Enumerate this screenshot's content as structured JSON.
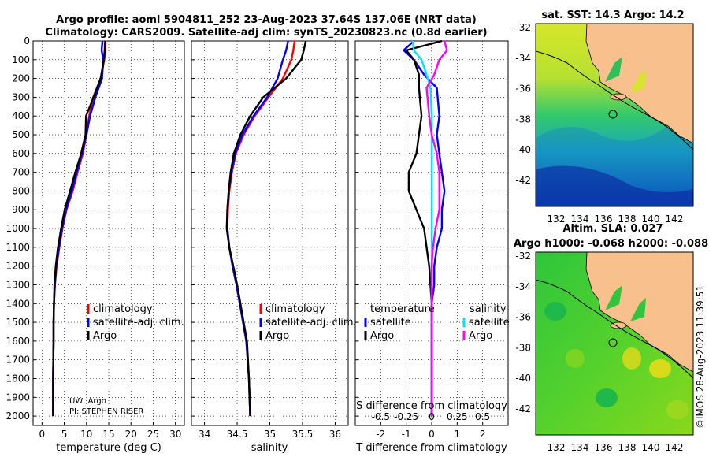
{
  "header": {
    "title1": "Argo profile: aoml 5904811_252 23-Aug-2023 37.64S 137.06E (NRT data)",
    "title2": "Climatology: CARS2009. Satellite-adj clim: synTS_20230823.nc (0.8d earlier)"
  },
  "colors": {
    "climatology": "#ff0000",
    "satellite": "#0000ff",
    "argo": "#000000",
    "satellite_salinity": "#00e5ff",
    "argo_salinity": "#ff00ff",
    "land": "#f8c08c"
  },
  "chart_data": [
    {
      "type": "line",
      "xlabel": "temperature (deg C)",
      "xlim": [
        -2,
        32
      ],
      "xticks": [
        "0",
        "5",
        "10",
        "15",
        "20",
        "25",
        "30"
      ],
      "ylim": [
        2050,
        0
      ],
      "yticks": [
        "0",
        "100",
        "200",
        "300",
        "400",
        "500",
        "600",
        "700",
        "800",
        "900",
        "1000",
        "1100",
        "1200",
        "1300",
        "1400",
        "1500",
        "1600",
        "1700",
        "1800",
        "1900",
        "2000"
      ],
      "legend": [
        "climatology",
        "satellite-adj. clim.",
        "Argo"
      ],
      "note1": "UW, Argo",
      "note2": "PI: STEPHEN RISER",
      "series": [
        {
          "name": "climatology",
          "color": "#ff0000",
          "x": [
            14.3,
            14.2,
            14.0,
            13.2,
            11.5,
            10.6,
            10.0,
            9.2,
            8.0,
            6.9,
            5.5,
            4.6,
            3.9,
            3.3,
            2.9,
            2.7,
            2.6,
            2.6,
            2.5,
            2.5
          ],
          "y": [
            0,
            50,
            100,
            200,
            300,
            400,
            500,
            600,
            700,
            800,
            900,
            1000,
            1100,
            1200,
            1300,
            1400,
            1500,
            1600,
            1800,
            2000
          ]
        },
        {
          "name": "satellite-adj. clim.",
          "color": "#0000ff",
          "x": [
            13.6,
            13.4,
            13.8,
            13.5,
            12.0,
            10.8,
            10.0,
            9.0,
            7.8,
            6.7,
            5.4,
            4.5,
            3.8,
            3.2,
            2.9,
            2.7,
            2.6,
            2.6,
            2.5,
            2.5
          ],
          "y": [
            0,
            50,
            100,
            200,
            300,
            400,
            500,
            600,
            700,
            800,
            900,
            1000,
            1100,
            1200,
            1300,
            1400,
            1500,
            1600,
            1800,
            2000
          ]
        },
        {
          "name": "Argo",
          "color": "#000000",
          "x": [
            14.2,
            14.1,
            13.9,
            13.2,
            11.6,
            9.9,
            9.8,
            8.8,
            7.5,
            6.3,
            5.1,
            4.3,
            3.6,
            3.1,
            2.8,
            2.7,
            2.6,
            2.6,
            2.5,
            2.5
          ],
          "y": [
            0,
            50,
            100,
            200,
            300,
            400,
            500,
            600,
            700,
            800,
            900,
            1000,
            1100,
            1200,
            1300,
            1400,
            1500,
            1600,
            1800,
            2000
          ]
        }
      ]
    },
    {
      "type": "line",
      "xlabel": "salinity",
      "xlim": [
        33.8,
        36.2
      ],
      "xticks": [
        "34",
        "34.5",
        "35",
        "35.5",
        "36"
      ],
      "ylim": [
        2050,
        0
      ],
      "legend": [
        "climatology",
        "satellite-adj. clim.",
        "Argo"
      ],
      "series": [
        {
          "name": "climatology",
          "color": "#ff0000",
          "x": [
            35.38,
            35.36,
            35.33,
            35.2,
            34.98,
            34.77,
            34.6,
            34.48,
            34.42,
            34.38,
            34.36,
            34.35,
            34.38,
            34.43,
            34.49,
            34.54,
            34.59,
            34.64,
            34.68,
            34.7
          ],
          "y": [
            0,
            50,
            100,
            200,
            300,
            400,
            500,
            600,
            700,
            800,
            900,
            1000,
            1100,
            1200,
            1300,
            1400,
            1500,
            1600,
            1800,
            2000
          ]
        },
        {
          "name": "satellite-adj. clim.",
          "color": "#0000ff",
          "x": [
            35.28,
            35.25,
            35.2,
            35.12,
            34.96,
            34.75,
            34.58,
            34.47,
            34.41,
            34.37,
            34.35,
            34.35,
            34.38,
            34.43,
            34.49,
            34.54,
            34.59,
            34.64,
            34.68,
            34.7
          ],
          "y": [
            0,
            50,
            100,
            200,
            300,
            400,
            500,
            600,
            700,
            800,
            900,
            1000,
            1100,
            1200,
            1300,
            1400,
            1500,
            1600,
            1800,
            2000
          ]
        },
        {
          "name": "Argo",
          "color": "#000000",
          "x": [
            35.55,
            35.52,
            35.48,
            35.25,
            34.9,
            34.7,
            34.55,
            34.45,
            34.4,
            34.37,
            34.35,
            34.34,
            34.38,
            34.44,
            34.5,
            34.55,
            34.6,
            34.65,
            34.68,
            34.7
          ],
          "y": [
            0,
            50,
            100,
            200,
            300,
            400,
            500,
            600,
            700,
            800,
            900,
            1000,
            1100,
            1200,
            1300,
            1400,
            1500,
            1600,
            1800,
            2000
          ]
        }
      ]
    },
    {
      "type": "line",
      "xlabel": "T difference from climatology",
      "xlabel_top": "S difference from climatology",
      "xlim": [
        -3,
        3
      ],
      "xticks": [
        "-2",
        "-1",
        "0",
        "1",
        "2"
      ],
      "xticks_top": [
        "-0.5",
        "-0.25",
        "0",
        "0.25",
        "0.5"
      ],
      "ylim": [
        2050,
        0
      ],
      "legend_t_title": "temperature",
      "legend_s_title": "salinity",
      "legend_t": [
        "satellite",
        "Argo"
      ],
      "legend_s": [
        "satellite",
        "Argo"
      ],
      "series": [
        {
          "name": "satellite",
          "color": "#0000ff",
          "x": [
            -0.7,
            -1.1,
            -0.7,
            -0.3,
            0.2,
            0.3,
            0.2,
            0.3,
            0.4,
            0.5,
            0.4,
            0.4,
            0.2,
            0.1,
            0.1,
            0,
            0,
            0,
            0,
            0
          ],
          "y": [
            0,
            50,
            100,
            180,
            250,
            400,
            500,
            600,
            700,
            800,
            900,
            1000,
            1100,
            1200,
            1300,
            1400,
            1500,
            1600,
            1800,
            2000
          ]
        },
        {
          "name": "Argo",
          "color": "#000000",
          "x": [
            0.4,
            -1.0,
            -0.7,
            -0.5,
            -0.5,
            -0.4,
            -0.5,
            -0.6,
            -0.9,
            -0.9,
            -0.6,
            -0.3,
            -0.2,
            -0.1,
            -0.05,
            0,
            0,
            0,
            0,
            0
          ],
          "y": [
            0,
            50,
            100,
            180,
            250,
            400,
            500,
            600,
            700,
            800,
            900,
            1000,
            1100,
            1200,
            1300,
            1400,
            1500,
            1600,
            1800,
            2000
          ]
        },
        {
          "name": "satellite S",
          "color": "#00e5ff",
          "x": [
            -0.75,
            -0.7,
            -0.4,
            -0.2,
            -0.05,
            0,
            0,
            0,
            0,
            0,
            0,
            0,
            0,
            0,
            0,
            0,
            0,
            0,
            0,
            0
          ],
          "y": [
            0,
            50,
            100,
            180,
            250,
            400,
            500,
            600,
            700,
            800,
            900,
            1000,
            1100,
            1200,
            1300,
            1400,
            1500,
            1600,
            1800,
            2000
          ]
        },
        {
          "name": "Argo S",
          "color": "#ff00ff",
          "x": [
            0.5,
            0.6,
            0.3,
            0.1,
            -0.2,
            -0.1,
            0,
            0.2,
            0.3,
            0.3,
            0.3,
            0.15,
            0.05,
            0,
            0,
            0,
            0,
            0,
            0,
            0
          ],
          "y": [
            0,
            50,
            100,
            180,
            250,
            400,
            500,
            600,
            700,
            800,
            900,
            1000,
            1100,
            1200,
            1300,
            1400,
            1500,
            1600,
            1800,
            2000
          ]
        }
      ]
    }
  ],
  "maps": {
    "sst": {
      "title": "sat. SST: 14.3 Argo: 14.2",
      "yticks": [
        "-32",
        "-34",
        "-36",
        "-38",
        "-40",
        "-42"
      ],
      "xticks": [
        "132",
        "134",
        "136",
        "138",
        "140",
        "142"
      ]
    },
    "sla": {
      "title1": "Altim. SLA: 0.027",
      "title2": "Argo h1000: -0.068 h2000: -0.088",
      "yticks": [
        "-32",
        "-34",
        "-36",
        "-38",
        "-40",
        "-42"
      ],
      "xticks": [
        "132",
        "134",
        "136",
        "138",
        "140",
        "142"
      ]
    }
  },
  "watermark": "©IMOS 28-Aug-2023 11:39:51"
}
